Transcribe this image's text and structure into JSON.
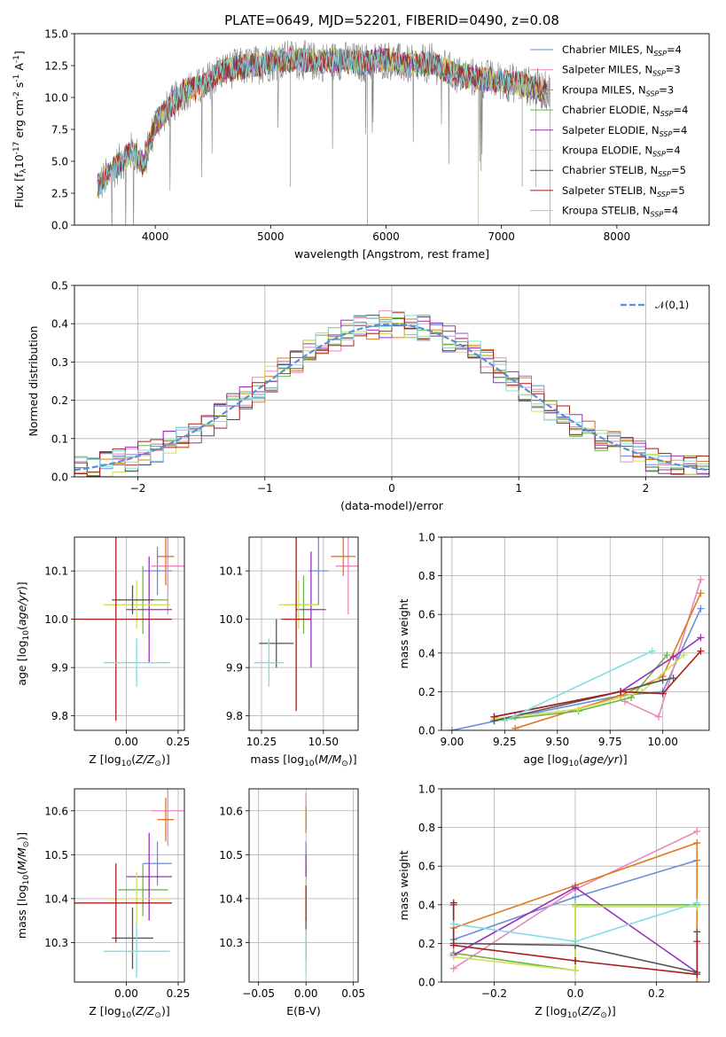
{
  "title": "PLATE=0649, MJD=52201, FIBERID=0490, z=0.08",
  "models": [
    {
      "name": "Chabrier MILES, N$_{SSP}$=4",
      "label_main": "Chabrier MILES, N",
      "label_sub": "SSP",
      "label_tail": "=4",
      "color": "#6b8ed6"
    },
    {
      "name": "Salpeter MILES, N$_{SSP}$=3",
      "label_main": "Salpeter MILES, N",
      "label_sub": "SSP",
      "label_tail": "=3",
      "color": "#e888bd"
    },
    {
      "name": "Kroupa MILES, N$_{SSP}$=3",
      "label_main": "Kroupa MILES, N",
      "label_sub": "SSP",
      "label_tail": "=3",
      "color": "#e07b1e"
    },
    {
      "name": "Chabrier ELODIE, N$_{SSP}$=4",
      "label_main": "Chabrier ELODIE, N",
      "label_sub": "SSP",
      "label_tail": "=4",
      "color": "#6fb34a"
    },
    {
      "name": "Salpeter ELODIE, N$_{SSP}$=4",
      "label_main": "Salpeter ELODIE, N",
      "label_sub": "SSP",
      "label_tail": "=4",
      "color": "#9b30bf"
    },
    {
      "name": "Kroupa ELODIE, N$_{SSP}$=4",
      "label_main": "Kroupa ELODIE, N",
      "label_sub": "SSP",
      "label_tail": "=4",
      "color": "#cde05a"
    },
    {
      "name": "Chabrier STELIB, N$_{SSP}$=5",
      "label_main": "Chabrier STELIB, N",
      "label_sub": "SSP",
      "label_tail": "=5",
      "color": "#555555"
    },
    {
      "name": "Salpeter STELIB, N$_{SSP}$=5",
      "label_main": "Salpeter STELIB, N",
      "label_sub": "SSP",
      "label_tail": "=5",
      "color": "#a51f1f"
    },
    {
      "name": "Kroupa STELIB, N$_{SSP}$=4",
      "label_main": "Kroupa STELIB, N",
      "label_sub": "SSP",
      "label_tail": "=4",
      "color": "#82dce6"
    }
  ],
  "chart_data": [
    {
      "id": "spectrum",
      "type": "line",
      "xlabel": "wavelength [Angstrom, rest frame]",
      "ylabel": "Flux [f$_\\lambda$10$^{-17}$ erg cm$^{-2}$ s$^{-1}$ A$^{-1}$]",
      "xlim": [
        3300,
        8800
      ],
      "ylim": [
        0,
        15
      ],
      "xticks": [
        4000,
        5000,
        6000,
        7000,
        8000
      ],
      "yticks": [
        0.0,
        2.5,
        5.0,
        7.5,
        10.0,
        12.5,
        15.0
      ],
      "legend_position": "right",
      "data_color": "#808080",
      "continuum": {
        "x": [
          3500,
          3650,
          3800,
          3900,
          4000,
          4100,
          4250,
          4400,
          4550,
          4700,
          4850,
          5000,
          5200,
          5400,
          5600,
          5800,
          6000,
          6200,
          6400,
          6600,
          6800,
          7000,
          7200,
          7400
        ],
        "y": [
          3.0,
          4.5,
          5.8,
          4.8,
          8.0,
          9.0,
          10.5,
          10.8,
          12.0,
          12.3,
          12.5,
          12.8,
          13.0,
          12.8,
          12.9,
          12.7,
          13.0,
          12.5,
          12.7,
          11.8,
          11.5,
          11.3,
          11.0,
          10.5
        ]
      },
      "data_xrange": [
        3500,
        7420
      ],
      "model_xrange": [
        3500,
        7400
      ]
    },
    {
      "id": "residual-histogram",
      "type": "histogram",
      "xlabel": "(data-model)/error",
      "ylabel": "Normed distribution",
      "xlim": [
        -2.5,
        2.5
      ],
      "ylim": [
        0,
        0.5
      ],
      "xticks": [
        -2,
        -1,
        0,
        1,
        2
      ],
      "yticks": [
        0.0,
        0.1,
        0.2,
        0.3,
        0.4,
        0.5
      ],
      "reference_curve": {
        "name": "$\\mathcal{N}(0,1)$",
        "mean": 0,
        "sigma": 1,
        "color": "#5b8fd6"
      },
      "grid": true,
      "legend_position": "upper right"
    },
    {
      "id": "age-vs-metallicity",
      "type": "errorbar",
      "xlabel": "Z [log$_{10}$($Z/Z_\\odot$)]",
      "ylabel": "age  [log$_{10}$($age/yr$)]",
      "xlim": [
        -0.25,
        0.28
      ],
      "ylim": [
        9.77,
        10.17
      ],
      "xticks": [
        0.0,
        0.25
      ],
      "yticks": [
        9.8,
        9.9,
        10.0,
        10.1
      ],
      "grid": true,
      "points": [
        {
          "x": 0.15,
          "y": 10.1,
          "xerr": 0.07,
          "yerr": 0.05
        },
        {
          "x": 0.2,
          "y": 10.11,
          "xerr": 0.08,
          "yerr": 0.1
        },
        {
          "x": 0.19,
          "y": 10.13,
          "xerr": 0.04,
          "yerr": 0.06
        },
        {
          "x": 0.08,
          "y": 10.04,
          "xerr": 0.12,
          "yerr": 0.07
        },
        {
          "x": 0.11,
          "y": 10.02,
          "xerr": 0.11,
          "yerr": 0.11
        },
        {
          "x": 0.05,
          "y": 10.03,
          "xerr": 0.16,
          "yerr": 0.05
        },
        {
          "x": 0.03,
          "y": 10.04,
          "xerr": 0.1,
          "yerr": 0.03
        },
        {
          "x": -0.05,
          "y": 10.0,
          "xerr": 0.27,
          "yerr": 0.21
        },
        {
          "x": 0.05,
          "y": 9.91,
          "xerr": 0.16,
          "yerr": 0.05
        }
      ]
    },
    {
      "id": "age-vs-mass",
      "type": "errorbar",
      "xlabel": "mass [log$_{10}$($M/M_\\odot$)]",
      "ylabel": "",
      "xlim": [
        10.2,
        10.64
      ],
      "ylim": [
        9.77,
        10.17
      ],
      "xticks": [
        10.25,
        10.5
      ],
      "yticks": [
        9.8,
        9.9,
        10.0,
        10.1
      ],
      "grid": true,
      "points": [
        {
          "x": 10.48,
          "y": 10.1,
          "xerr": 0.04,
          "yerr": 0.07
        },
        {
          "x": 10.6,
          "y": 10.11,
          "xerr": 0.05,
          "yerr": 0.1
        },
        {
          "x": 10.58,
          "y": 10.13,
          "xerr": 0.05,
          "yerr": 0.04
        },
        {
          "x": 10.42,
          "y": 10.03,
          "xerr": 0.06,
          "yerr": 0.06
        },
        {
          "x": 10.45,
          "y": 10.02,
          "xerr": 0.06,
          "yerr": 0.12
        },
        {
          "x": 10.4,
          "y": 10.03,
          "xerr": 0.08,
          "yerr": 0.05
        },
        {
          "x": 10.31,
          "y": 9.95,
          "xerr": 0.07,
          "yerr": 0.05
        },
        {
          "x": 10.39,
          "y": 10.0,
          "xerr": 0.06,
          "yerr": 0.19
        },
        {
          "x": 10.28,
          "y": 9.91,
          "xerr": 0.06,
          "yerr": 0.05
        }
      ]
    },
    {
      "id": "mass-weight-vs-age",
      "type": "line",
      "xlabel": "age  [log$_{10}$($age/yr$)]",
      "ylabel": "mass weight",
      "xlim": [
        8.95,
        10.22
      ],
      "ylim": [
        0,
        1
      ],
      "xticks": [
        9.0,
        9.25,
        9.5,
        9.75,
        10.0
      ],
      "xtick_labels": [
        "9.00",
        "9.25",
        "9.50",
        "9.75",
        "10.00"
      ],
      "yticks": [
        0.0,
        0.2,
        0.4,
        0.6,
        0.8,
        1.0
      ],
      "grid": true,
      "series": [
        {
          "x": [
            9.0,
            9.3,
            9.8,
            10.0,
            10.18
          ],
          "y": [
            0.0,
            0.07,
            0.18,
            0.2,
            0.63
          ]
        },
        {
          "x": [
            9.82,
            9.98,
            10.18
          ],
          "y": [
            0.15,
            0.07,
            0.78
          ]
        },
        {
          "x": [
            9.3,
            9.8,
            10.0,
            10.18
          ],
          "y": [
            0.01,
            0.18,
            0.28,
            0.71
          ]
        },
        {
          "x": [
            9.2,
            9.6,
            9.85,
            10.02
          ],
          "y": [
            0.05,
            0.1,
            0.17,
            0.39
          ]
        },
        {
          "x": [
            9.2,
            9.8,
            10.05,
            10.18
          ],
          "y": [
            0.07,
            0.2,
            0.38,
            0.48
          ]
        },
        {
          "x": [
            9.2,
            9.6,
            9.9,
            10.1
          ],
          "y": [
            0.06,
            0.11,
            0.2,
            0.39
          ]
        },
        {
          "x": [
            9.2,
            9.8,
            10.0,
            10.05
          ],
          "y": [
            0.05,
            0.2,
            0.26,
            0.27
          ]
        },
        {
          "x": [
            9.2,
            9.8,
            10.0,
            10.18
          ],
          "y": [
            0.07,
            0.2,
            0.19,
            0.41
          ]
        },
        {
          "x": [
            9.25,
            9.95
          ],
          "y": [
            0.05,
            0.41
          ]
        }
      ]
    },
    {
      "id": "mass-vs-metallicity",
      "type": "errorbar",
      "xlabel": "Z [log$_{10}$($Z/Z_\\odot$)]",
      "ylabel": "mass [log$_{10}$($M/M_\\odot$)]",
      "xlim": [
        -0.25,
        0.28
      ],
      "ylim": [
        10.21,
        10.65
      ],
      "xticks": [
        0.0,
        0.25
      ],
      "yticks": [
        10.3,
        10.4,
        10.5,
        10.6
      ],
      "grid": true,
      "points": [
        {
          "x": 0.15,
          "y": 10.48,
          "xerr": 0.07,
          "yerr": 0.05
        },
        {
          "x": 0.2,
          "y": 10.6,
          "xerr": 0.08,
          "yerr": 0.08
        },
        {
          "x": 0.19,
          "y": 10.58,
          "xerr": 0.04,
          "yerr": 0.05
        },
        {
          "x": 0.08,
          "y": 10.42,
          "xerr": 0.12,
          "yerr": 0.06
        },
        {
          "x": 0.11,
          "y": 10.45,
          "xerr": 0.11,
          "yerr": 0.1
        },
        {
          "x": 0.05,
          "y": 10.4,
          "xerr": 0.16,
          "yerr": 0.06
        },
        {
          "x": 0.03,
          "y": 10.31,
          "xerr": 0.1,
          "yerr": 0.07
        },
        {
          "x": -0.05,
          "y": 10.39,
          "xerr": 0.27,
          "yerr": 0.09
        },
        {
          "x": 0.05,
          "y": 10.28,
          "xerr": 0.16,
          "yerr": 0.06
        }
      ]
    },
    {
      "id": "mass-vs-ebv",
      "type": "errorbar",
      "xlabel": "E(B-V)",
      "ylabel": "",
      "xlim": [
        -0.06,
        0.055
      ],
      "ylim": [
        10.21,
        10.65
      ],
      "xticks": [
        -0.05,
        0.0,
        0.05
      ],
      "yticks": [
        10.3,
        10.4,
        10.5,
        10.6
      ],
      "grid": true,
      "points": [
        {
          "x": 0.0,
          "y": 10.48,
          "xerr": 0.0,
          "yerr": 0.05
        },
        {
          "x": 0.0,
          "y": 10.6,
          "xerr": 0.0,
          "yerr": 0.04
        },
        {
          "x": 0.0,
          "y": 10.58,
          "xerr": 0.0,
          "yerr": 0.03
        },
        {
          "x": 0.0,
          "y": 10.42,
          "xerr": 0.0,
          "yerr": 0.05
        },
        {
          "x": 0.0,
          "y": 10.45,
          "xerr": 0.0,
          "yerr": 0.05
        },
        {
          "x": 0.0,
          "y": 10.4,
          "xerr": 0.0,
          "yerr": 0.05
        },
        {
          "x": 0.0,
          "y": 10.31,
          "xerr": 0.0,
          "yerr": 0.05
        },
        {
          "x": 0.0,
          "y": 10.39,
          "xerr": 0.0,
          "yerr": 0.04
        },
        {
          "x": 0.0,
          "y": 10.28,
          "xerr": 0.0,
          "yerr": 0.05
        }
      ]
    },
    {
      "id": "mass-weight-vs-metallicity",
      "type": "line",
      "xlabel": "Z [log$_{10}$($Z/Z_\\odot$)]",
      "ylabel": "mass weight",
      "xlim": [
        -0.33,
        0.33
      ],
      "ylim": [
        0,
        1
      ],
      "xticks": [
        -0.2,
        0.0,
        0.2
      ],
      "xtick_labels": [
        "−0.2",
        "0.0",
        "0.2"
      ],
      "yticks": [
        0.0,
        0.2,
        0.4,
        0.6,
        0.8,
        1.0
      ],
      "grid": true,
      "series": [
        {
          "x": [
            -0.3,
            0.0,
            0.3
          ],
          "y": [
            0.22,
            0.44,
            0.63
          ]
        },
        {
          "x": [
            -0.3,
            0.0,
            0.3
          ],
          "y": [
            0.07,
            0.48,
            0.78
          ]
        },
        {
          "x": [
            -0.3,
            0.0,
            0.3,
            0.3
          ],
          "y": [
            0.28,
            0.5,
            0.72,
            0.0
          ]
        },
        {
          "x": [
            -0.3,
            0.0,
            0.0,
            0.3
          ],
          "y": [
            0.15,
            0.06,
            0.4,
            0.4
          ]
        },
        {
          "x": [
            -0.3,
            0.0,
            0.3
          ],
          "y": [
            0.14,
            0.49,
            0.05
          ]
        },
        {
          "x": [
            -0.3,
            0.0,
            0.0,
            0.3
          ],
          "y": [
            0.13,
            0.06,
            0.39,
            0.39
          ]
        },
        {
          "x": [
            -0.3,
            -0.3,
            0.0,
            0.3,
            0.3
          ],
          "y": [
            0.4,
            0.2,
            0.19,
            0.05,
            0.26
          ]
        },
        {
          "x": [
            -0.3,
            -0.3,
            0.0,
            0.3,
            0.3
          ],
          "y": [
            0.41,
            0.19,
            0.11,
            0.04,
            0.21
          ]
        },
        {
          "x": [
            -0.3,
            0.0,
            0.3
          ],
          "y": [
            0.3,
            0.21,
            0.41
          ]
        }
      ]
    }
  ]
}
